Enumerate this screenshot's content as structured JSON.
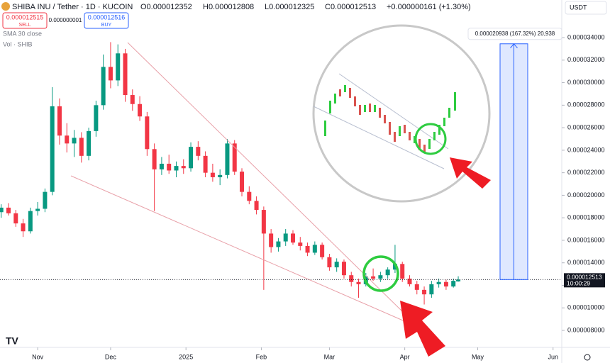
{
  "header": {
    "symbol": "SHIBA INU / Tether · 1D · KUCOIN",
    "ohlc": [
      "O0.000012352",
      "H0.000012808",
      "L0.000012325",
      "C0.000012513",
      "+0.000000161 (+1.30%)"
    ],
    "sell": {
      "price": "0.000012515",
      "label": "SELL"
    },
    "spread": "0.000000001",
    "buy": {
      "price": "0.000012516",
      "label": "BUY"
    },
    "indicators": [
      "SMA 30 close",
      "Vol · SHIB"
    ],
    "currency": "USDT"
  },
  "chart_data": {
    "type": "candlestick",
    "up_color": "#089981",
    "down_color": "#f23645",
    "grid": false,
    "xlim": [
      -15.5,
      215
    ],
    "xticks": [
      {
        "value": 0,
        "label": "Nov"
      },
      {
        "value": 30,
        "label": "Dec"
      },
      {
        "value": 61,
        "label": "2025"
      },
      {
        "value": 92,
        "label": "Feb"
      },
      {
        "value": 120,
        "label": "Mar"
      },
      {
        "value": 151,
        "label": "Apr"
      },
      {
        "value": 181,
        "label": "May"
      },
      {
        "value": 212,
        "label": "Jun"
      }
    ],
    "ylim": [
      6.49e-06,
      3.734e-05
    ],
    "yticks": [
      {
        "value": 8e-06,
        "label": "0.000008000"
      },
      {
        "value": 1e-05,
        "label": "0.000010000"
      },
      {
        "value": 1.2e-05,
        "label": "0.000012000"
      },
      {
        "value": 1.4e-05,
        "label": "0.000014000"
      },
      {
        "value": 1.6e-05,
        "label": "0.000016000"
      },
      {
        "value": 1.8e-05,
        "label": "0.000018000"
      },
      {
        "value": 2e-05,
        "label": "0.000020000"
      },
      {
        "value": 2.2e-05,
        "label": "0.000022000"
      },
      {
        "value": 2.4e-05,
        "label": "0.000024000"
      },
      {
        "value": 2.6e-05,
        "label": "0.000026000"
      },
      {
        "value": 2.8e-05,
        "label": "0.000028000"
      },
      {
        "value": 3e-05,
        "label": "0.000030000"
      },
      {
        "value": 3.2e-05,
        "label": "0.000032000"
      },
      {
        "value": 3.4e-05,
        "label": "0.000034000"
      }
    ],
    "x": [
      -15,
      -12,
      -9,
      -6,
      -3,
      0,
      3,
      6,
      9,
      12,
      15,
      18,
      21,
      24,
      27,
      30,
      33,
      36,
      39,
      42,
      45,
      48,
      51,
      54,
      57,
      60,
      63,
      66,
      69,
      72,
      75,
      78,
      81,
      84,
      87,
      90,
      93,
      96,
      99,
      102,
      105,
      108,
      111,
      114,
      117,
      120,
      123,
      126,
      129,
      132,
      135,
      138,
      141,
      144,
      147,
      150,
      153,
      156,
      159,
      162,
      165,
      168,
      171,
      173
    ],
    "open": [
      1.85e-05,
      1.89e-05,
      1.84e-05,
      1.75e-05,
      1.68e-05,
      1.86e-05,
      1.88e-05,
      2.03e-05,
      2.79e-05,
      2.53e-05,
      2.46e-05,
      2.51e-05,
      2.35e-05,
      2.57e-05,
      2.8e-05,
      3.14e-05,
      3.02e-05,
      3.26e-05,
      2.89e-05,
      2.81e-05,
      2.7e-05,
      2.41e-05,
      2.23e-05,
      2.28e-05,
      2.22e-05,
      2.26e-05,
      2.24e-05,
      2.43e-05,
      2.35e-05,
      2.2e-05,
      2.16e-05,
      2.18e-05,
      2.46e-05,
      2.21e-05,
      2.03e-05,
      1.95e-05,
      1.87e-05,
      1.66e-05,
      1.54e-05,
      1.59e-05,
      1.66e-05,
      1.58e-05,
      1.55e-05,
      1.49e-05,
      1.56e-05,
      1.45e-05,
      1.36e-05,
      1.41e-05,
      1.29e-05,
      1.23e-05,
      1.21e-05,
      1.28e-05,
      1.26e-05,
      1.29e-05,
      1.34e-05,
      1.39e-05,
      1.26e-05,
      1.21e-05,
      1.16e-05,
      1.12e-05,
      1.21e-05,
      1.23e-05,
      1.19e-05,
      1.2352e-05
    ],
    "high": [
      1.92e-05,
      1.93e-05,
      1.87e-05,
      1.79e-05,
      1.89e-05,
      1.94e-05,
      2.06e-05,
      2.96e-05,
      2.86e-05,
      2.64e-05,
      2.58e-05,
      2.56e-05,
      2.6e-05,
      2.84e-05,
      3.25e-05,
      3.36e-05,
      3.34e-05,
      3.3e-05,
      2.94e-05,
      2.88e-05,
      2.74e-05,
      2.46e-05,
      2.34e-05,
      2.36e-05,
      2.3e-05,
      2.32e-05,
      2.47e-05,
      2.48e-05,
      2.39e-05,
      2.28e-05,
      2.23e-05,
      2.5e-05,
      2.49e-05,
      2.24e-05,
      2.08e-05,
      1.99e-05,
      1.9e-05,
      1.7e-05,
      1.62e-05,
      1.7e-05,
      1.69e-05,
      1.63e-05,
      1.58e-05,
      1.59e-05,
      1.58e-05,
      1.48e-05,
      1.44e-05,
      1.43e-05,
      1.32e-05,
      1.26e-05,
      1.31e-05,
      1.35e-05,
      1.32e-05,
      1.36e-05,
      1.56e-05,
      1.41e-05,
      1.29e-05,
      1.24e-05,
      1.19e-05,
      1.24e-05,
      1.26e-05,
      1.25e-05,
      1.26e-05,
      1.2808e-05
    ],
    "low": [
      1.8e-05,
      1.82e-05,
      1.72e-05,
      1.63e-05,
      1.66e-05,
      1.82e-05,
      1.85e-05,
      2e-05,
      2.45e-05,
      2.38e-05,
      2.34e-05,
      2.29e-05,
      2.31e-05,
      2.52e-05,
      2.76e-05,
      2.95e-05,
      2.97e-05,
      2.83e-05,
      2.75e-05,
      2.66e-05,
      2.35e-05,
      1.86e-05,
      2.18e-05,
      2.19e-05,
      2.16e-05,
      2.19e-05,
      2.21e-05,
      2.31e-05,
      2.16e-05,
      2.12e-05,
      2.09e-05,
      2.15e-05,
      2.18e-05,
      1.99e-05,
      1.92e-05,
      1.83e-05,
      1.16e-05,
      1.49e-05,
      1.5e-05,
      1.55e-05,
      1.56e-05,
      1.51e-05,
      1.46e-05,
      1.47e-05,
      1.43e-05,
      1.33e-05,
      1.32e-05,
      1.26e-05,
      1.19e-05,
      1.09e-05,
      1.19e-05,
      1.24e-05,
      1.23e-05,
      1.26e-05,
      1.31e-05,
      1.23e-05,
      1.19e-05,
      1.12e-05,
      1.03e-05,
      1.09e-05,
      1.18e-05,
      1.16e-05,
      1.18e-05,
      1.2325e-05
    ],
    "close": [
      1.89e-05,
      1.84e-05,
      1.75e-05,
      1.68e-05,
      1.86e-05,
      1.88e-05,
      2.03e-05,
      2.79e-05,
      2.53e-05,
      2.46e-05,
      2.51e-05,
      2.35e-05,
      2.57e-05,
      2.8e-05,
      3.14e-05,
      3.02e-05,
      3.26e-05,
      2.89e-05,
      2.81e-05,
      2.7e-05,
      2.41e-05,
      2.23e-05,
      2.28e-05,
      2.22e-05,
      2.26e-05,
      2.24e-05,
      2.43e-05,
      2.35e-05,
      2.2e-05,
      2.16e-05,
      2.18e-05,
      2.46e-05,
      2.21e-05,
      2.03e-05,
      1.95e-05,
      1.87e-05,
      1.66e-05,
      1.54e-05,
      1.59e-05,
      1.66e-05,
      1.58e-05,
      1.55e-05,
      1.49e-05,
      1.56e-05,
      1.45e-05,
      1.36e-05,
      1.41e-05,
      1.29e-05,
      1.23e-05,
      1.21e-05,
      1.28e-05,
      1.26e-05,
      1.29e-05,
      1.34e-05,
      1.39e-05,
      1.26e-05,
      1.21e-05,
      1.16e-05,
      1.12e-05,
      1.21e-05,
      1.23e-05,
      1.19e-05,
      1.24e-05,
      1.2513e-05
    ],
    "countdown": "10:00:29",
    "measure": {
      "change": 2.0938e-05,
      "label": "0.000020938 (167.32%) 20,938",
      "color": "#2962ff"
    }
  }
}
